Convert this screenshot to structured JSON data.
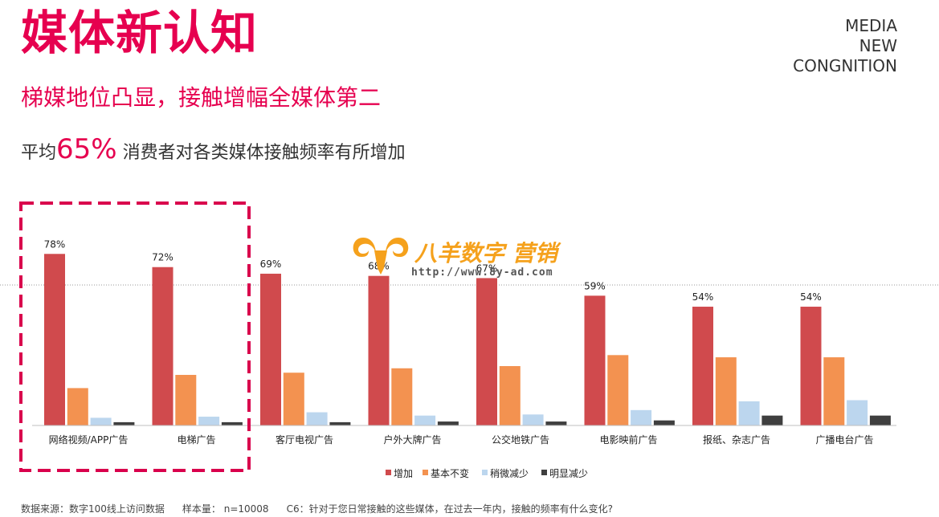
{
  "header": {
    "title": "媒体新认知",
    "en_title_lines": [
      "MEDIA",
      "NEW",
      "CONGNITION"
    ],
    "subtitle": "梯媒地位凸显，接触增幅全媒体第二",
    "highlight_prefix": "平均",
    "highlight_value": "65%",
    "highlight_suffix": " 消费者对各类媒体接触频率有所增加"
  },
  "watermark": {
    "text": "八羊数字 营销",
    "url": "http://www.8y-ad.com"
  },
  "colors": {
    "accent": "#e6004f",
    "series": [
      "#d04a4d",
      "#f39250",
      "#bcd6ee",
      "#3f3f3f"
    ],
    "highlight_box": "#d9004c"
  },
  "chart_data": {
    "type": "bar",
    "categories": [
      "网络视频/APP广告",
      "电梯广告",
      "客厅电视广告",
      "户外大牌广告",
      "公交地铁广告",
      "电影映前广告",
      "报纸、杂志广告",
      "广播电台广告"
    ],
    "series": [
      {
        "name": "增加",
        "values": [
          78,
          72,
          69,
          68,
          67,
          59,
          54,
          54
        ],
        "labels": [
          "78%",
          "72%",
          "69%",
          "68%",
          "67%",
          "59%",
          "54%",
          "54%"
        ]
      },
      {
        "name": "基本不变",
        "values": [
          17,
          23,
          24,
          26,
          27,
          32,
          31,
          31
        ]
      },
      {
        "name": "稍微减少",
        "values": [
          3.5,
          4,
          6,
          4.5,
          5,
          7,
          11,
          11.5
        ]
      },
      {
        "name": "明显减少",
        "values": [
          1.5,
          1.5,
          1.5,
          1.8,
          1.8,
          2.3,
          4.5,
          4.5
        ]
      }
    ],
    "ylim": [
      0,
      100
    ],
    "legend_position": "bottom",
    "grid": false,
    "highlighted_categories": [
      0,
      1
    ]
  },
  "footnote": {
    "source": "数据来源：数字100线上访问数据",
    "sample": "样本量： n=10008",
    "question": "C6：针对于您日常接触的这些媒体，在过去一年内，接触的频率有什么变化?"
  }
}
